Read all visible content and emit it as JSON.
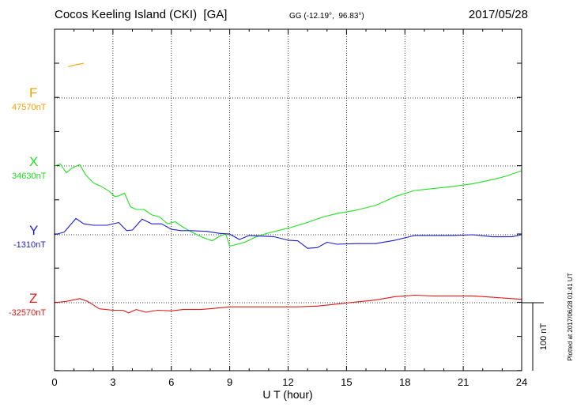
{
  "header": {
    "station": "Cocos Keeling Island (CKI)  [GA]",
    "coords": "GG (-12.19°,  96.83°)",
    "date": "2017/05/28"
  },
  "chart_data": {
    "type": "line",
    "xlabel": "U T (hour)",
    "xlim": [
      0,
      24
    ],
    "xticks": [
      "0",
      "3",
      "6",
      "9",
      "12",
      "15",
      "18",
      "21",
      "24"
    ],
    "scale_bar": "100 nT",
    "plotted_note": "Plotted at 2017/06/28 01:41  UT",
    "channels": [
      {
        "name": "F",
        "baseline": "47570nT",
        "color": "#f5a000"
      },
      {
        "name": "X",
        "baseline": "34630nT",
        "color": "#22e022"
      },
      {
        "name": "Y",
        "baseline": "-1310nT",
        "color": "#1c1cd2"
      },
      {
        "name": "Z",
        "baseline": "-32570nT",
        "color": "#e01818"
      }
    ],
    "series": [
      {
        "name": "F",
        "values_nT": [
          [
            0.7,
            46
          ],
          [
            1.1,
            49
          ],
          [
            1.5,
            51
          ]
        ]
      },
      {
        "name": "X",
        "values_nT": [
          [
            0,
            0
          ],
          [
            0.3,
            3
          ],
          [
            0.6,
            -10
          ],
          [
            0.9,
            -3
          ],
          [
            1.3,
            2
          ],
          [
            1.6,
            -13
          ],
          [
            2.0,
            -25
          ],
          [
            2.4,
            -30
          ],
          [
            2.8,
            -37
          ],
          [
            3.1,
            -45
          ],
          [
            3.3,
            -44
          ],
          [
            3.6,
            -40
          ],
          [
            3.9,
            -60
          ],
          [
            4.2,
            -64
          ],
          [
            4.6,
            -64
          ],
          [
            5.0,
            -72
          ],
          [
            5.4,
            -75
          ],
          [
            5.8,
            -85
          ],
          [
            6.2,
            -82
          ],
          [
            6.6,
            -90
          ],
          [
            7.1,
            -98
          ],
          [
            7.6,
            -105
          ],
          [
            8.1,
            -110
          ],
          [
            8.5,
            -103
          ],
          [
            8.8,
            -100
          ],
          [
            9.0,
            -118
          ],
          [
            9.4,
            -115
          ],
          [
            9.8,
            -112
          ],
          [
            10.3,
            -105
          ],
          [
            10.8,
            -100
          ],
          [
            11.5,
            -95
          ],
          [
            12.2,
            -90
          ],
          [
            13.0,
            -83
          ],
          [
            13.8,
            -75
          ],
          [
            14.5,
            -70
          ],
          [
            15.5,
            -65
          ],
          [
            16.5,
            -58
          ],
          [
            17.5,
            -45
          ],
          [
            18.5,
            -36
          ],
          [
            19.5,
            -33
          ],
          [
            20.5,
            -30
          ],
          [
            21.5,
            -26
          ],
          [
            22.5,
            -20
          ],
          [
            23.2,
            -15
          ],
          [
            24,
            -7
          ]
        ]
      },
      {
        "name": "Y",
        "values_nT": [
          [
            0,
            0
          ],
          [
            0.5,
            4
          ],
          [
            1.1,
            24
          ],
          [
            1.5,
            16
          ],
          [
            2.0,
            14
          ],
          [
            2.7,
            14
          ],
          [
            3.3,
            18
          ],
          [
            3.7,
            6
          ],
          [
            4.0,
            7
          ],
          [
            4.5,
            23
          ],
          [
            5.0,
            16
          ],
          [
            5.5,
            16
          ],
          [
            6.0,
            8
          ],
          [
            6.5,
            6
          ],
          [
            7.0,
            6
          ],
          [
            7.8,
            5
          ],
          [
            8.5,
            2
          ],
          [
            9.0,
            1
          ],
          [
            9.5,
            -7
          ],
          [
            10.0,
            -1
          ],
          [
            10.6,
            -2
          ],
          [
            11.3,
            -3
          ],
          [
            12.0,
            -8
          ],
          [
            12.5,
            -9
          ],
          [
            13.0,
            -20
          ],
          [
            13.5,
            -19
          ],
          [
            14.0,
            -11
          ],
          [
            14.5,
            -14
          ],
          [
            15.5,
            -13
          ],
          [
            16.5,
            -13
          ],
          [
            17.5,
            -8
          ],
          [
            18.5,
            -1
          ],
          [
            19.5,
            -1
          ],
          [
            20.5,
            -1
          ],
          [
            21.5,
            0
          ],
          [
            22.5,
            -3
          ],
          [
            23.5,
            -3
          ],
          [
            24,
            0
          ]
        ]
      },
      {
        "name": "Z",
        "values_nT": [
          [
            0,
            0
          ],
          [
            0.6,
            2
          ],
          [
            1.3,
            6
          ],
          [
            1.7,
            2
          ],
          [
            2.3,
            -9
          ],
          [
            3.0,
            -11
          ],
          [
            3.5,
            -11
          ],
          [
            3.8,
            -15
          ],
          [
            4.2,
            -10
          ],
          [
            4.7,
            -14
          ],
          [
            5.3,
            -11
          ],
          [
            6.0,
            -12
          ],
          [
            6.6,
            -10
          ],
          [
            7.5,
            -10
          ],
          [
            8.3,
            -8
          ],
          [
            9.0,
            -6
          ],
          [
            9.5,
            -6
          ],
          [
            10.5,
            -6
          ],
          [
            11.5,
            -6
          ],
          [
            12.5,
            -6
          ],
          [
            13.5,
            -5
          ],
          [
            14.5,
            -2
          ],
          [
            15.5,
            1
          ],
          [
            16.5,
            4
          ],
          [
            17.5,
            9
          ],
          [
            18.5,
            11
          ],
          [
            19.5,
            10
          ],
          [
            20.5,
            10
          ],
          [
            21.5,
            10
          ],
          [
            22.5,
            8
          ],
          [
            23.5,
            6
          ],
          [
            24,
            5
          ]
        ]
      }
    ]
  }
}
